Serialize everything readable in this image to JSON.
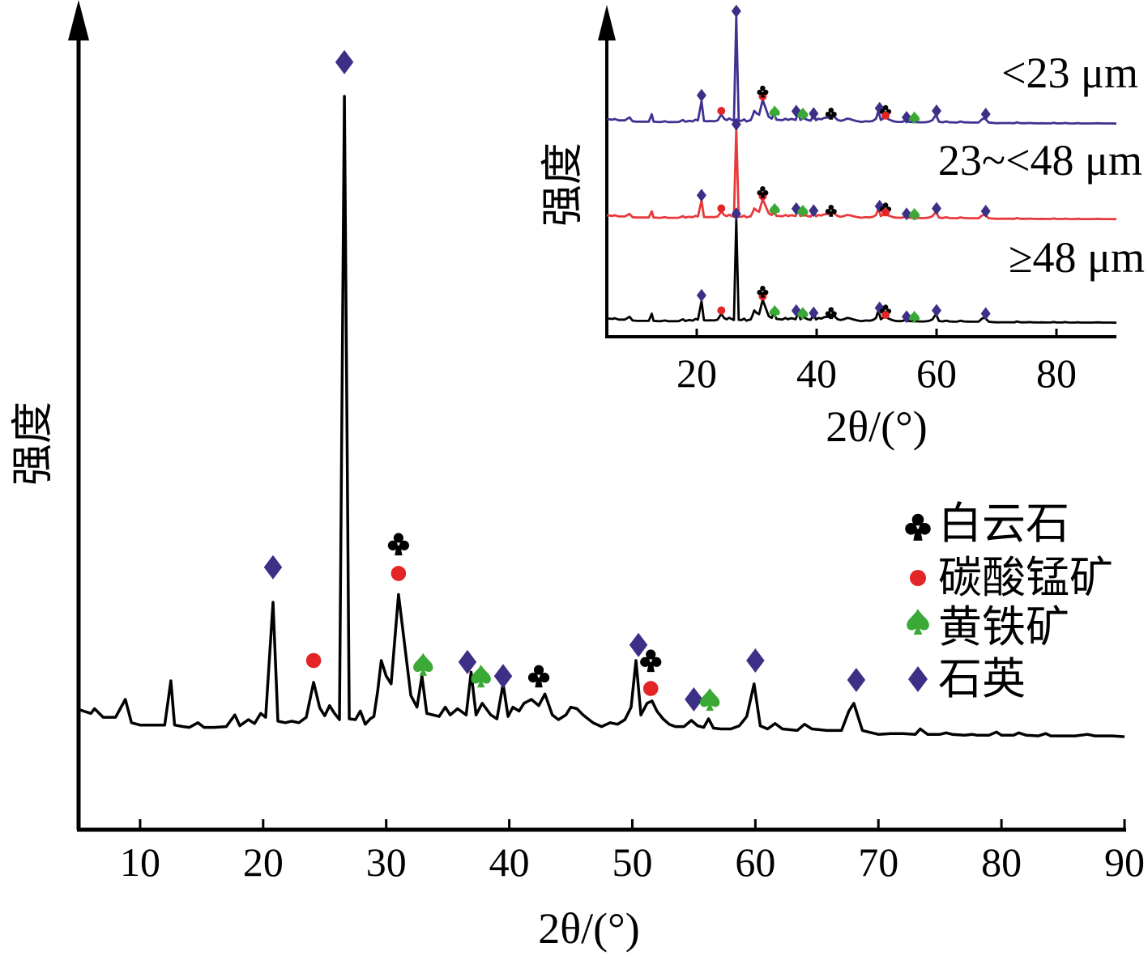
{
  "chart_data": [
    {
      "type": "line",
      "xlabel": "2θ/(°)",
      "ylabel": "强度",
      "xlim": [
        5,
        90
      ],
      "xticks": [
        "10",
        "20",
        "30",
        "40",
        "50",
        "60",
        "70",
        "80",
        "90"
      ],
      "series": [
        {
          "color": "#000000",
          "x": [
            5.0,
            6.0,
            6.3,
            7.0,
            8.0,
            8.8,
            9.3,
            10.0,
            11.0,
            12.0,
            12.5,
            12.8,
            13.5,
            14.0,
            14.7,
            15.2,
            16.0,
            17.0,
            17.7,
            18.1,
            18.8,
            19.3,
            19.8,
            20.2,
            20.8,
            21.2,
            21.8,
            22.3,
            22.9,
            23.5,
            24.1,
            24.6,
            25.0,
            25.4,
            25.8,
            26.2,
            26.6,
            27.0,
            27.5,
            27.9,
            28.3,
            28.7,
            29.0,
            29.3,
            29.6,
            30.0,
            30.4,
            31.0,
            31.5,
            32.0,
            32.5,
            32.9,
            33.3,
            33.8,
            34.3,
            34.8,
            35.2,
            35.8,
            36.5,
            36.9,
            37.3,
            37.8,
            38.5,
            39.0,
            39.5,
            39.9,
            40.3,
            40.8,
            41.2,
            41.8,
            42.4,
            42.9,
            43.5,
            44.0,
            44.6,
            45.0,
            45.5,
            46.0,
            46.8,
            47.5,
            48.2,
            48.8,
            49.4,
            49.9,
            50.3,
            50.7,
            51.2,
            51.6,
            52.0,
            52.5,
            53.0,
            53.5,
            54.2,
            54.8,
            55.3,
            55.8,
            56.2,
            56.6,
            57.2,
            58.0,
            58.7,
            59.3,
            59.9,
            60.4,
            61.0,
            61.6,
            62.2,
            62.8,
            63.4,
            64.0,
            64.6,
            65.2,
            65.8,
            66.4,
            67.0,
            67.6,
            68.0,
            68.3,
            68.7,
            69.2,
            70.0,
            71.0,
            72.0,
            73.0,
            73.4,
            74.0,
            75.0,
            75.5,
            76.0,
            77.0,
            77.6,
            78.0,
            79.0,
            79.6,
            80.0,
            81.0,
            81.4,
            82.0,
            83.0,
            83.6,
            84.0,
            85.0,
            86.0,
            87.0,
            87.6,
            88.0,
            89.0,
            90.0
          ],
          "y": [
            37,
            32,
            38,
            27,
            27,
            50,
            20,
            17,
            17,
            17,
            74,
            17,
            15,
            14,
            20,
            14,
            14,
            15,
            30,
            16,
            24,
            19,
            32,
            27,
            175,
            22,
            20,
            22,
            20,
            27,
            72,
            39,
            29,
            42,
            32,
            24,
            826,
            25,
            24,
            35,
            18,
            25,
            28,
            60,
            100,
            80,
            70,
            185,
            120,
            55,
            40,
            80,
            32,
            30,
            28,
            40,
            30,
            38,
            30,
            85,
            30,
            45,
            30,
            25,
            70,
            28,
            40,
            35,
            45,
            50,
            42,
            57,
            30,
            24,
            30,
            40,
            38,
            30,
            20,
            15,
            20,
            18,
            24,
            40,
            100,
            30,
            45,
            48,
            35,
            25,
            18,
            15,
            15,
            23,
            16,
            14,
            25,
            13,
            12,
            12,
            16,
            28,
            70,
            16,
            12,
            19,
            12,
            11,
            10,
            18,
            12,
            11,
            10,
            10,
            10,
            35,
            45,
            30,
            10,
            8,
            5,
            6,
            6,
            5,
            12,
            5,
            5,
            7,
            5,
            4,
            5,
            4,
            4,
            8,
            4,
            4,
            7,
            4,
            3,
            6,
            3,
            3,
            3,
            5,
            3,
            3,
            3,
            2
          ]
        }
      ],
      "markers": [
        {
          "symbol": "diamond",
          "x": 20.8,
          "y": 220
        },
        {
          "symbol": "dot",
          "x": 24.1,
          "y": 100
        },
        {
          "symbol": "diamond",
          "x": 26.6,
          "y": 870
        },
        {
          "symbol": "dot",
          "x": 31.0,
          "y": 212
        },
        {
          "symbol": "club",
          "x": 31.0,
          "y": 250
        },
        {
          "symbol": "spade",
          "x": 33.0,
          "y": 95
        },
        {
          "symbol": "diamond",
          "x": 36.6,
          "y": 98
        },
        {
          "symbol": "spade",
          "x": 37.7,
          "y": 80
        },
        {
          "symbol": "diamond",
          "x": 39.5,
          "y": 80
        },
        {
          "symbol": "club",
          "x": 42.4,
          "y": 80
        },
        {
          "symbol": "diamond",
          "x": 50.5,
          "y": 120
        },
        {
          "symbol": "club",
          "x": 51.5,
          "y": 100
        },
        {
          "symbol": "dot",
          "x": 51.5,
          "y": 64
        },
        {
          "symbol": "diamond",
          "x": 55.0,
          "y": 50
        },
        {
          "symbol": "spade",
          "x": 56.3,
          "y": 50
        },
        {
          "symbol": "diamond",
          "x": 60.0,
          "y": 100
        },
        {
          "symbol": "diamond",
          "x": 68.2,
          "y": 75
        }
      ]
    },
    {
      "type": "line",
      "xlabel": "2θ/(°)",
      "ylabel": "强度",
      "xlim": [
        5,
        90
      ],
      "xticks": [
        "20",
        "40",
        "60",
        "80"
      ],
      "series": [
        {
          "name": "<23 μm",
          "color": "#3f3290"
        },
        {
          "name": "23~<48 μm",
          "color": "#e83a3d"
        },
        {
          "name": "≥48 μm",
          "color": "#000000"
        }
      ]
    }
  ],
  "legend": [
    {
      "symbol": "club",
      "label": "白云石",
      "color": "#000000"
    },
    {
      "symbol": "dot",
      "label": "碳酸锰矿",
      "color": "#e32526"
    },
    {
      "symbol": "spade",
      "label": "黄铁矿",
      "color": "#3aa935"
    },
    {
      "symbol": "diamond",
      "label": "石英",
      "color": "#3c2f86"
    }
  ],
  "colors": {
    "dolomite": "#000000",
    "rhodochrosite": "#e32526",
    "pyrite": "#3aa935",
    "quartz": "#3c2f86"
  }
}
